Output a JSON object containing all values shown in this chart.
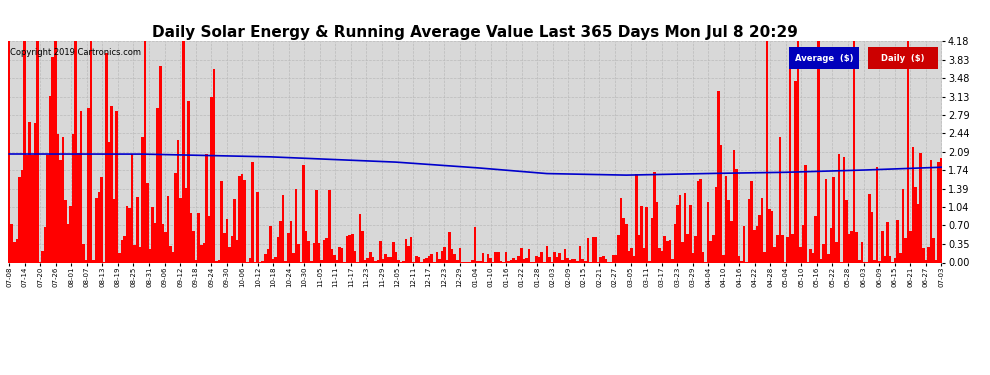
{
  "title": "Daily Solar Energy & Running Average Value Last 365 Days Mon Jul 8 20:29",
  "copyright": "Copyright 2019 Cartronics.com",
  "ylim": [
    0.0,
    4.18
  ],
  "yticks": [
    0.0,
    0.35,
    0.7,
    1.04,
    1.39,
    1.74,
    2.09,
    2.44,
    2.79,
    3.13,
    3.48,
    3.83,
    4.18
  ],
  "bar_color": "#ff0000",
  "avg_color": "#0000cc",
  "bg_color": "#ffffff",
  "plot_bg_color": "#d8d8d8",
  "grid_color": "#bbbbbb",
  "title_fontsize": 11,
  "legend_avg_color": "#0000cc",
  "legend_daily_color": "#cc0000",
  "n_days": 365,
  "x_tick_labels": [
    "07-08",
    "07-14",
    "07-20",
    "07-26",
    "08-01",
    "08-07",
    "08-13",
    "08-19",
    "08-25",
    "08-31",
    "09-06",
    "09-12",
    "09-18",
    "09-24",
    "09-30",
    "10-06",
    "10-12",
    "10-18",
    "10-24",
    "10-30",
    "11-05",
    "11-11",
    "11-17",
    "11-23",
    "11-29",
    "12-05",
    "12-11",
    "12-17",
    "12-23",
    "12-29",
    "01-04",
    "01-10",
    "01-16",
    "01-22",
    "01-28",
    "02-03",
    "02-09",
    "02-15",
    "02-21",
    "02-27",
    "03-05",
    "03-11",
    "03-17",
    "03-23",
    "03-29",
    "04-04",
    "04-10",
    "04-16",
    "04-22",
    "04-28",
    "05-04",
    "05-10",
    "05-16",
    "05-22",
    "05-28",
    "06-03",
    "06-09",
    "06-15",
    "06-21",
    "06-27",
    "07-03"
  ]
}
